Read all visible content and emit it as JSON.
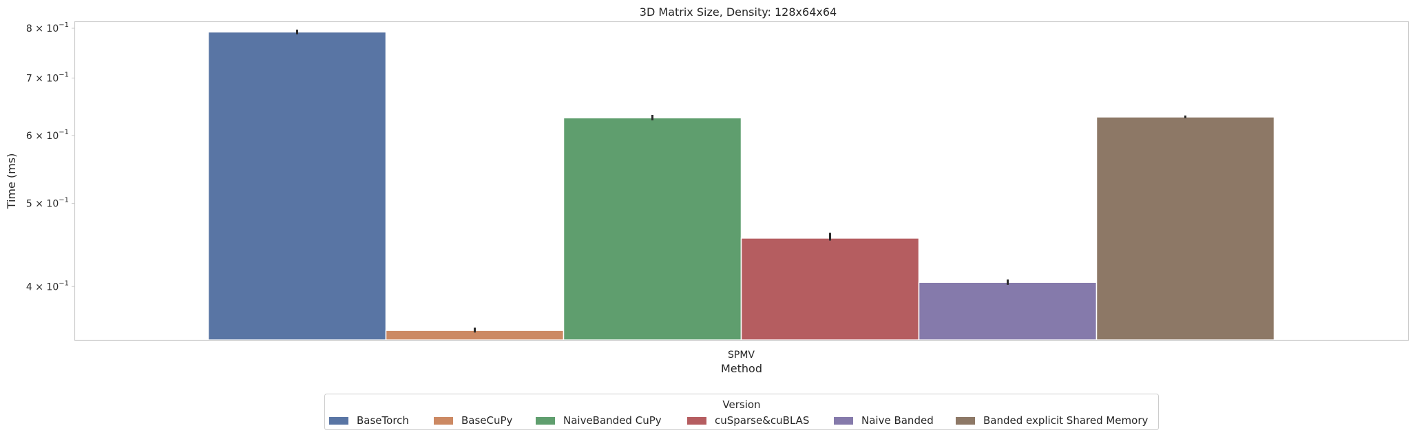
{
  "chart_data": {
    "type": "bar",
    "title": "3D Matrix Size, Density: 128x64x64",
    "xlabel": "Method",
    "ylabel": "Time (ms)",
    "yscale": "log",
    "ylim": [
      0.3465,
      0.815
    ],
    "grid": false,
    "categories": [
      "SPMV"
    ],
    "yticks": [
      {
        "value": 0.8,
        "mantissa": "8",
        "exponent": "−1"
      },
      {
        "value": 0.7,
        "mantissa": "7",
        "exponent": "−1"
      },
      {
        "value": 0.6,
        "mantissa": "6",
        "exponent": "−1"
      },
      {
        "value": 0.5,
        "mantissa": "5",
        "exponent": "−1"
      },
      {
        "value": 0.4,
        "mantissa": "4",
        "exponent": "−1"
      }
    ],
    "tick_base": "10",
    "series": [
      {
        "name": "BaseTorch",
        "color": "#5975a4",
        "values": [
          0.792
        ],
        "err": [
          [
            0.787,
            0.797
          ]
        ]
      },
      {
        "name": "BaseCuPy",
        "color": "#cc8963",
        "values": [
          0.3555
        ],
        "err": [
          [
            0.3535,
            0.3582
          ]
        ]
      },
      {
        "name": "NaiveBanded CuPy",
        "color": "#5f9e6e",
        "values": [
          0.629
        ],
        "err": [
          [
            0.625,
            0.634
          ]
        ]
      },
      {
        "name": "cuSparse&cuBLAS",
        "color": "#b55d60",
        "values": [
          0.4555
        ],
        "err": [
          [
            0.4525,
            0.462
          ]
        ]
      },
      {
        "name": "Naive Banded",
        "color": "#857aab",
        "values": [
          0.4045
        ],
        "err": [
          [
            0.4018,
            0.4075
          ]
        ]
      },
      {
        "name": "Banded explicit Shared Memory",
        "color": "#8d7866",
        "values": [
          0.6305
        ],
        "err": [
          [
            0.6285,
            0.633
          ]
        ]
      }
    ],
    "legend": {
      "title": "Version",
      "placement": "bottom-center"
    }
  }
}
